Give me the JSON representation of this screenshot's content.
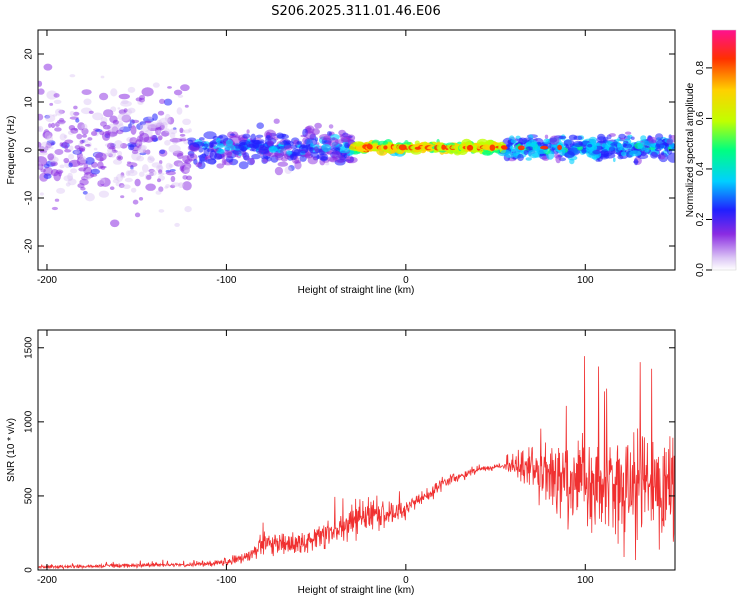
{
  "title": "S206.2025.311.01.46.E06",
  "chart_data": [
    {
      "type": "heatmap",
      "title": "S206.2025.311.01.46.E06",
      "xlabel": "Height of straight line (km)",
      "ylabel": "Frequency (Hz)",
      "xlim": [
        -205,
        150
      ],
      "ylim": [
        -25,
        25
      ],
      "x_ticks": [
        -200,
        -100,
        0,
        100
      ],
      "x_tick_labels": [
        "-200",
        "-100",
        "0",
        "100"
      ],
      "y_ticks": [
        -20,
        -10,
        0,
        10,
        20
      ],
      "y_tick_labels": [
        "-20",
        "-10",
        "0",
        "10",
        "20"
      ],
      "colorbar": {
        "label": "Normalized spectral amplitude",
        "range": [
          0,
          0.95
        ],
        "ticks": [
          0.0,
          0.2,
          0.4,
          0.6,
          0.8
        ],
        "tick_labels": [
          "0.0",
          "0.2",
          "0.4",
          "0.6",
          "0.8"
        ],
        "colors": [
          "#ffffff",
          "#dcc6f5",
          "#8a2be2",
          "#2020ff",
          "#00d0ff",
          "#00ff80",
          "#c0ff00",
          "#ffd000",
          "#ff3000",
          "#ff1090"
        ]
      },
      "band": {
        "center_freq": 0.5,
        "spread_segments": [
          {
            "x": [
              -205,
              -120
            ],
            "spread_hz": 20,
            "intensity": 0.1
          },
          {
            "x": [
              -120,
              -30
            ],
            "spread_hz": 6,
            "intensity": 0.25
          },
          {
            "x": [
              -30,
              55
            ],
            "spread_hz": 1.5,
            "intensity": 0.75
          },
          {
            "x": [
              55,
              150
            ],
            "spread_hz": 4,
            "intensity": 0.35
          }
        ]
      }
    },
    {
      "type": "line",
      "xlabel": "Height of straight line (km)",
      "ylabel": "SNR (10 * v/v)",
      "xlim": [
        -205,
        150
      ],
      "ylim": [
        0,
        1620
      ],
      "x_ticks": [
        -200,
        -100,
        0,
        100
      ],
      "x_tick_labels": [
        "-200",
        "-100",
        "0",
        "100"
      ],
      "y_ticks": [
        0,
        500,
        1000,
        1500
      ],
      "y_tick_labels": [
        "0",
        "500",
        "1000",
        "1500"
      ],
      "color": "#f03030",
      "envelope": {
        "x": [
          -205,
          -150,
          -120,
          -100,
          -90,
          -80,
          -60,
          -40,
          -30,
          -20,
          -10,
          0,
          20,
          40,
          55,
          65,
          80,
          90,
          100,
          110,
          130,
          150
        ],
        "mean": [
          20,
          30,
          35,
          50,
          80,
          160,
          180,
          250,
          330,
          380,
          380,
          400,
          580,
          680,
          700,
          720,
          650,
          620,
          600,
          600,
          560,
          540
        ],
        "amp": [
          15,
          25,
          20,
          40,
          60,
          120,
          120,
          150,
          180,
          160,
          140,
          100,
          60,
          30,
          30,
          180,
          350,
          450,
          600,
          600,
          550,
          550
        ]
      }
    }
  ]
}
